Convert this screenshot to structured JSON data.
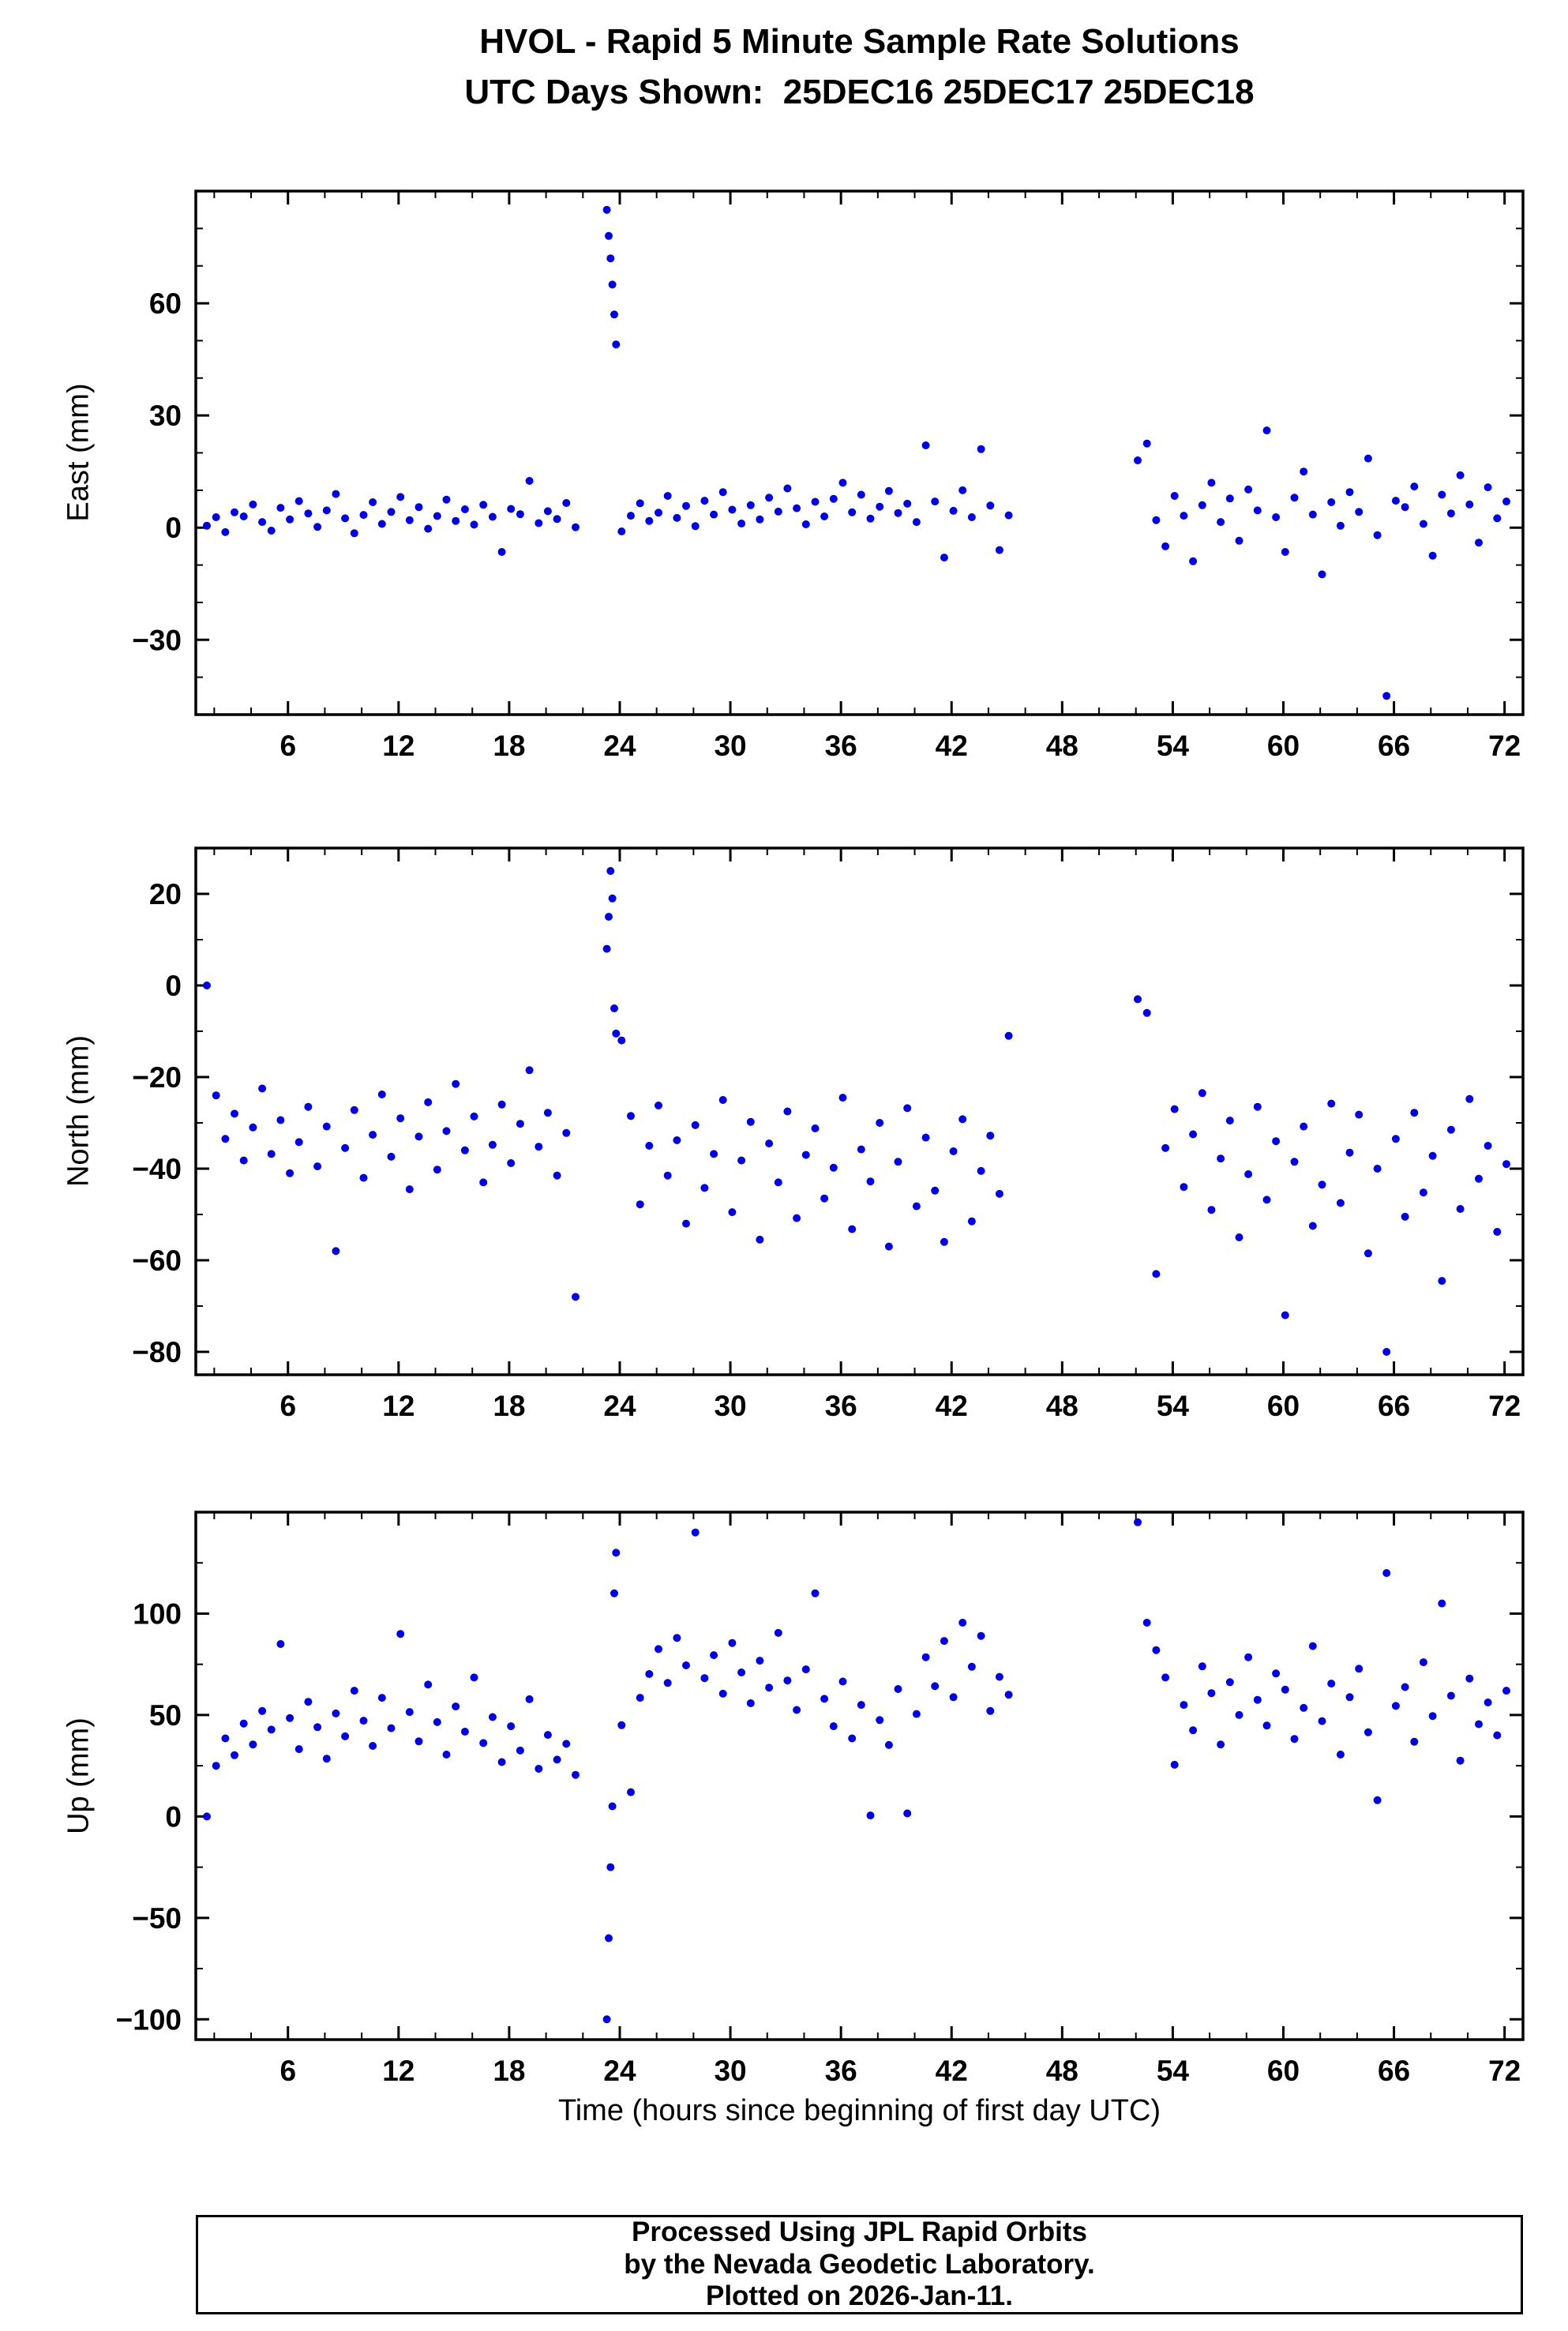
{
  "title": "HVOL - Rapid 5 Minute Sample Rate Solutions",
  "subtitle": "UTC Days Shown:  25DEC16 25DEC17 25DEC18",
  "footer": {
    "line1": "Processed Using JPL Rapid Orbits",
    "line2": "by the Nevada Geodetic Laboratory.",
    "line3": "Plotted on 2026-Jan-11."
  },
  "colors": {
    "marker": "#0000dd",
    "axis": "#000000",
    "background": "#ffffff"
  },
  "chart_data": {
    "type": "scatter",
    "title": "HVOL - Rapid 5 Minute Sample Rate Solutions",
    "subtitle": "UTC Days Shown:  25DEC16 25DEC17 25DEC18",
    "xlabel": "Time (hours since beginning of first day UTC)",
    "xlim": [
      1,
      73
    ],
    "xticks": [
      6,
      12,
      18,
      24,
      30,
      36,
      42,
      48,
      54,
      60,
      66,
      72
    ],
    "xminor": 2,
    "grid": false,
    "legend": false,
    "x": [
      1.6,
      2.1,
      2.6,
      3.1,
      3.6,
      4.1,
      4.6,
      5.1,
      5.6,
      6.1,
      6.6,
      7.1,
      7.6,
      8.1,
      8.6,
      9.1,
      9.6,
      10.1,
      10.6,
      11.1,
      11.6,
      12.1,
      12.6,
      13.1,
      13.6,
      14.1,
      14.6,
      15.1,
      15.6,
      16.1,
      16.6,
      17.1,
      17.6,
      18.1,
      18.6,
      19.1,
      19.6,
      20.1,
      20.6,
      21.1,
      21.6,
      23.3,
      23.4,
      23.5,
      23.6,
      23.7,
      23.8,
      24.1,
      24.6,
      25.1,
      25.6,
      26.1,
      26.6,
      27.1,
      27.6,
      28.1,
      28.6,
      29.1,
      29.6,
      30.1,
      30.6,
      31.1,
      31.6,
      32.1,
      32.6,
      33.1,
      33.6,
      34.1,
      34.6,
      35.1,
      35.6,
      36.1,
      36.6,
      37.1,
      37.6,
      38.1,
      38.6,
      39.1,
      39.6,
      40.1,
      40.6,
      41.1,
      41.6,
      42.1,
      42.6,
      43.1,
      43.6,
      44.1,
      44.6,
      45.1,
      52.1,
      52.6,
      53.1,
      53.6,
      54.1,
      54.6,
      55.1,
      55.6,
      56.1,
      56.6,
      57.1,
      57.6,
      58.1,
      58.6,
      59.1,
      59.6,
      60.1,
      60.6,
      61.1,
      61.6,
      62.1,
      62.6,
      63.1,
      63.6,
      64.1,
      64.6,
      65.1,
      65.6,
      66.1,
      66.6,
      67.1,
      67.6,
      68.1,
      68.6,
      69.1,
      69.6,
      70.1,
      70.6,
      71.1,
      71.6,
      72.1
    ],
    "series": [
      {
        "name": "East",
        "ylabel": "East (mm)",
        "ylim": [
          -50,
          90
        ],
        "yticks": [
          -30,
          0,
          30,
          60
        ],
        "yminor": 10,
        "values": [
          0.5,
          2.8,
          -1.2,
          4.1,
          3.0,
          6.2,
          1.5,
          -0.8,
          5.3,
          2.2,
          7.1,
          3.8,
          0.2,
          4.6,
          9.0,
          2.5,
          -1.5,
          3.4,
          6.8,
          1.0,
          4.2,
          8.2,
          2.0,
          5.5,
          -0.3,
          3.1,
          7.5,
          1.8,
          4.9,
          0.8,
          6.1,
          2.9,
          -6.5,
          5.0,
          3.6,
          12.5,
          1.2,
          4.4,
          2.3,
          6.6,
          0.1,
          85,
          78,
          72,
          65,
          57,
          49,
          -1.0,
          3.2,
          6.5,
          1.8,
          4.0,
          8.5,
          2.6,
          5.8,
          0.4,
          7.2,
          3.5,
          9.5,
          4.8,
          1.1,
          6.0,
          2.2,
          8.0,
          4.3,
          10.5,
          5.2,
          0.9,
          6.9,
          3.0,
          7.7,
          12.0,
          4.1,
          8.8,
          2.4,
          5.6,
          9.8,
          3.9,
          6.4,
          1.5,
          22.0,
          7.0,
          -8.0,
          4.5,
          10.0,
          2.8,
          21.0,
          5.9,
          -6.0,
          3.3,
          18.0,
          22.5,
          2.0,
          -5.0,
          8.5,
          3.2,
          -9.0,
          6.0,
          12.0,
          1.5,
          7.8,
          -3.5,
          10.2,
          4.6,
          26.0,
          2.8,
          -6.5,
          8.0,
          15.0,
          3.5,
          -12.5,
          6.8,
          0.5,
          9.5,
          4.2,
          18.5,
          -2.0,
          -45.0,
          7.2,
          5.5,
          11.0,
          1.0,
          -7.5,
          8.8,
          3.8,
          14.0,
          6.2,
          -4.0,
          10.8,
          2.5,
          7.0
        ]
      },
      {
        "name": "North",
        "ylabel": "North (mm)",
        "ylim": [
          -85,
          30
        ],
        "yticks": [
          -80,
          -60,
          -40,
          -20,
          0,
          20
        ],
        "yminor": 10,
        "values": [
          0.0,
          -24.0,
          -33.5,
          -28.0,
          -38.2,
          -31.0,
          -22.5,
          -36.8,
          -29.4,
          -41.0,
          -34.2,
          -26.5,
          -39.5,
          -30.8,
          -58.0,
          -35.5,
          -27.2,
          -42.0,
          -32.6,
          -23.8,
          -37.4,
          -29.0,
          -44.5,
          -33.0,
          -25.5,
          -40.2,
          -31.8,
          -21.5,
          -36.0,
          -28.6,
          -43.0,
          -34.8,
          -26.0,
          -38.8,
          -30.2,
          -18.5,
          -35.2,
          -27.8,
          -41.5,
          -32.2,
          -68.0,
          8.0,
          15.0,
          25.0,
          19.0,
          -5.0,
          -10.5,
          -12.0,
          -28.5,
          -47.8,
          -35.0,
          -26.2,
          -41.5,
          -33.8,
          -52.0,
          -30.5,
          -44.2,
          -36.8,
          -25.0,
          -49.5,
          -38.2,
          -29.8,
          -55.5,
          -34.5,
          -43.0,
          -27.5,
          -50.8,
          -37.0,
          -31.2,
          -46.5,
          -39.8,
          -24.5,
          -53.2,
          -35.8,
          -42.8,
          -30.0,
          -57.0,
          -38.5,
          -26.8,
          -48.2,
          -33.2,
          -44.8,
          -56.0,
          -36.2,
          -29.2,
          -51.5,
          -40.5,
          -32.8,
          -45.5,
          -11.0,
          -3.0,
          -6.0,
          -63.0,
          -35.5,
          -27.0,
          -44.0,
          -32.5,
          -23.5,
          -49.0,
          -37.8,
          -29.5,
          -55.0,
          -41.2,
          -26.5,
          -46.8,
          -34.0,
          -72.0,
          -38.5,
          -30.8,
          -52.5,
          -43.5,
          -25.8,
          -47.5,
          -36.5,
          -28.2,
          -58.5,
          -40.0,
          -80.0,
          -33.5,
          -50.5,
          -27.8,
          -45.2,
          -37.2,
          -64.5,
          -31.5,
          -48.8,
          -24.8,
          -42.2,
          -35.0,
          -53.8,
          -39.0
        ]
      },
      {
        "name": "Up",
        "ylabel": "Up (mm)",
        "ylim": [
          -110,
          150
        ],
        "yticks": [
          -100,
          -50,
          0,
          50,
          100
        ],
        "yminor": 25,
        "values": [
          0.0,
          25.0,
          38.5,
          30.2,
          45.8,
          35.5,
          52.0,
          42.8,
          85.0,
          48.5,
          33.2,
          56.5,
          44.0,
          28.5,
          50.8,
          39.5,
          62.0,
          47.2,
          34.8,
          58.5,
          43.5,
          90.0,
          51.5,
          37.0,
          65.0,
          46.5,
          30.5,
          54.2,
          41.8,
          68.5,
          36.2,
          49.0,
          26.8,
          44.5,
          32.5,
          57.8,
          23.5,
          40.2,
          28.0,
          35.8,
          20.5,
          -100.0,
          -60.0,
          -25.0,
          5.0,
          110.0,
          130.0,
          45.0,
          12.0,
          58.5,
          70.2,
          82.5,
          65.8,
          88.0,
          74.5,
          140.0,
          68.2,
          79.5,
          60.5,
          85.5,
          71.0,
          55.8,
          76.8,
          63.5,
          90.5,
          67.0,
          52.5,
          72.5,
          110.0,
          58.0,
          44.5,
          66.5,
          38.5,
          55.0,
          0.5,
          47.5,
          35.2,
          62.8,
          1.5,
          50.5,
          78.5,
          64.2,
          86.5,
          58.8,
          95.5,
          73.8,
          89.0,
          52.0,
          68.8,
          60.0,
          145.0,
          95.5,
          82.0,
          68.5,
          25.5,
          55.0,
          42.5,
          74.0,
          60.8,
          35.5,
          66.2,
          50.0,
          78.5,
          57.5,
          44.8,
          70.5,
          62.5,
          38.2,
          53.5,
          84.0,
          47.0,
          65.5,
          30.5,
          58.8,
          72.8,
          41.5,
          8.0,
          120.0,
          54.5,
          63.8,
          36.8,
          76.0,
          49.5,
          105.0,
          59.5,
          27.5,
          68.0,
          45.5,
          56.2,
          40.0,
          62.0
        ]
      }
    ]
  }
}
